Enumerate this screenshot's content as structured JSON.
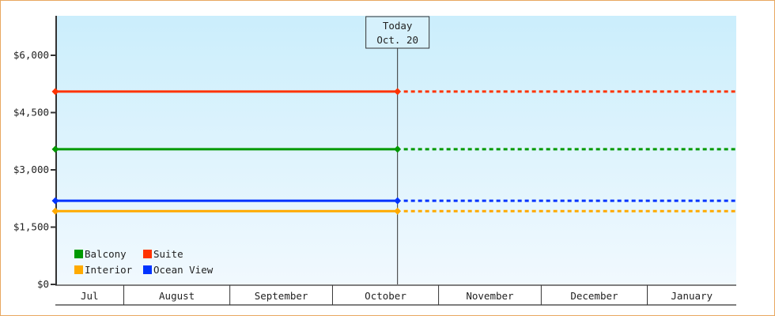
{
  "chart_data": {
    "type": "line",
    "title": "",
    "xlabel": "",
    "ylabel": "",
    "ylim": [
      0,
      7000
    ],
    "y_ticks": [
      "$0",
      "$1,500",
      "$3,000",
      "$4,500",
      "$6,000"
    ],
    "y_tick_values": [
      0,
      1500,
      3000,
      4500,
      6000
    ],
    "x_range": [
      "2014-07-12",
      "2015-01-27"
    ],
    "months": [
      {
        "label": "Jul",
        "start": "2014-07-12",
        "end": "2014-08-01"
      },
      {
        "label": "August",
        "start": "2014-08-01",
        "end": "2014-09-01"
      },
      {
        "label": "September",
        "start": "2014-09-01",
        "end": "2014-10-01"
      },
      {
        "label": "October",
        "start": "2014-10-01",
        "end": "2014-11-01"
      },
      {
        "label": "November",
        "start": "2014-11-01",
        "end": "2014-12-01"
      },
      {
        "label": "December",
        "start": "2014-12-01",
        "end": "2015-01-01"
      },
      {
        "label": "January",
        "start": "2015-01-01",
        "end": "2015-01-27"
      }
    ],
    "today": {
      "label": "Today",
      "date_label": "Oct. 20",
      "date": "2014-10-20"
    },
    "grid": false,
    "legend_placement": "bottom-left",
    "series": [
      {
        "name": "Balcony",
        "color": "#009900",
        "x": [
          "2014-07-12",
          "2014-10-20"
        ],
        "values": [
          3540,
          3540
        ],
        "projection": 3540
      },
      {
        "name": "Suite",
        "color": "#ff3300",
        "x": [
          "2014-07-12",
          "2014-10-20"
        ],
        "values": [
          5050,
          5050
        ],
        "projection": 5050
      },
      {
        "name": "Interior",
        "color": "#ffaa00",
        "x": [
          "2014-07-12",
          "2014-10-20"
        ],
        "values": [
          1920,
          1920
        ],
        "projection": 1920
      },
      {
        "name": "Ocean View",
        "color": "#0033ff",
        "x": [
          "2014-07-12",
          "2014-10-20"
        ],
        "values": [
          2190,
          2190
        ],
        "projection": 2190
      }
    ]
  }
}
